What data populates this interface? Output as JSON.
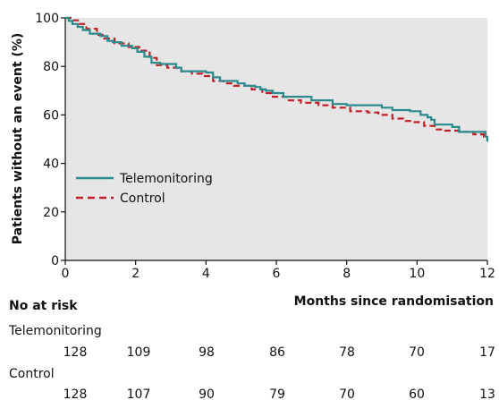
{
  "chart_data": {
    "type": "line",
    "xlabel": "Months since randomisation",
    "ylabel": "Patients without an event (%)",
    "xlim": [
      0,
      12
    ],
    "ylim": [
      0,
      100
    ],
    "x_ticks": [
      "0",
      "2",
      "4",
      "6",
      "8",
      "10",
      "12"
    ],
    "y_ticks": [
      "0",
      "20",
      "40",
      "60",
      "80",
      "100"
    ],
    "grid": false,
    "legend_position": "left",
    "series": [
      {
        "name": "Telemonitoring",
        "color": "#2a8a8c",
        "style": "solid",
        "x": [
          0,
          0.1,
          0.2,
          0.35,
          0.5,
          0.7,
          1.0,
          1.2,
          1.35,
          1.6,
          1.9,
          2.05,
          2.25,
          2.45,
          2.7,
          3.1,
          3.15,
          3.3,
          3.6,
          4.0,
          4.2,
          4.4,
          4.6,
          4.9,
          5.1,
          5.4,
          5.55,
          5.7,
          5.9,
          6.2,
          6.5,
          7.0,
          7.4,
          7.6,
          8.0,
          8.6,
          9.0,
          9.3,
          9.6,
          9.8,
          10.1,
          10.3,
          10.4,
          10.5,
          11.0,
          11.2,
          11.6,
          11.95,
          12.0
        ],
        "y": [
          100,
          98.8,
          97.5,
          96.3,
          95.0,
          93.5,
          92.5,
          90.5,
          90.0,
          88.5,
          87.5,
          86.0,
          84.0,
          81.5,
          81.0,
          81.0,
          79.5,
          78.0,
          78.0,
          77.5,
          75.5,
          74.0,
          74.0,
          73.0,
          72.0,
          71.5,
          70.5,
          70.0,
          69.0,
          67.5,
          67.5,
          66.0,
          66.0,
          64.5,
          64.0,
          64.0,
          63.0,
          62.0,
          62.0,
          61.5,
          60.0,
          59.0,
          58.0,
          56.0,
          55.0,
          53.0,
          53.0,
          51.0,
          49.0
        ]
      },
      {
        "name": "Control",
        "color": "#c0202a",
        "style": "dashed",
        "x": [
          0,
          0.2,
          0.4,
          0.6,
          0.9,
          1.1,
          1.4,
          1.8,
          2.1,
          2.4,
          2.6,
          2.9,
          3.3,
          3.6,
          3.9,
          4.2,
          4.5,
          4.8,
          5.3,
          5.6,
          5.9,
          6.3,
          6.7,
          7.2,
          7.6,
          8.1,
          8.6,
          8.9,
          9.3,
          9.6,
          9.9,
          10.2,
          10.5,
          10.8,
          11.2,
          11.6,
          11.9,
          12.0
        ],
        "y": [
          100,
          99.0,
          97.5,
          95.5,
          93.0,
          91.5,
          89.5,
          88.0,
          86.5,
          83.5,
          80.5,
          79.5,
          78.0,
          77.0,
          76.0,
          74.0,
          73.0,
          72.0,
          70.5,
          69.0,
          67.5,
          66.0,
          65.0,
          64.0,
          63.0,
          61.5,
          61.0,
          60.0,
          58.5,
          57.5,
          57.0,
          55.5,
          54.0,
          53.5,
          53.0,
          52.0,
          51.0,
          51.0
        ]
      }
    ]
  },
  "risk_table": {
    "title": "No at risk",
    "groups": [
      {
        "name": "Telemonitoring",
        "values": [
          "128",
          "109",
          "98",
          "86",
          "78",
          "70",
          "17"
        ]
      },
      {
        "name": "Control",
        "values": [
          "128",
          "107",
          "90",
          "79",
          "70",
          "60",
          "13"
        ]
      }
    ]
  }
}
